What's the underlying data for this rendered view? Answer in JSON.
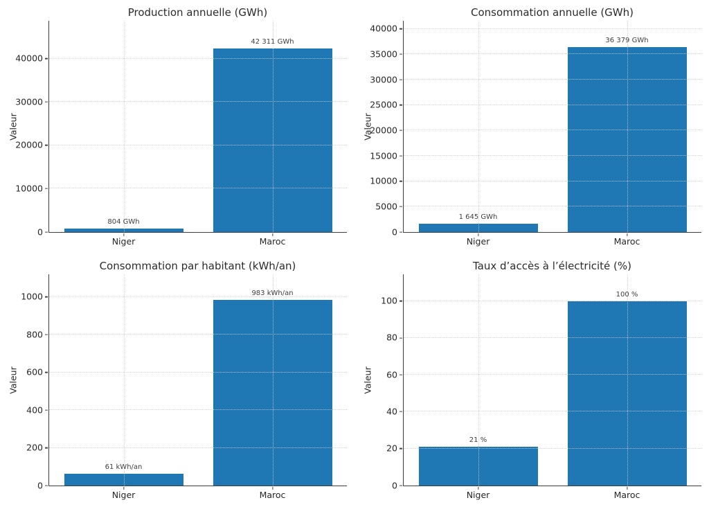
{
  "figure": {
    "background": "#ffffff",
    "layout": "2x2-grid"
  },
  "colors": {
    "bar": "#1f77b4",
    "grid": "#cacaca",
    "spine": "#3c3c3c",
    "tick_text": "#262626",
    "annotation_text": "#3d3d3d"
  },
  "chart_data": [
    {
      "type": "bar",
      "title": "Production annuelle (GWh)",
      "xlabel": "",
      "ylabel": "Valeur",
      "categories": [
        "Niger",
        "Maroc"
      ],
      "values": [
        804,
        42311
      ],
      "value_labels": [
        "804 GWh",
        "42 311 GWh"
      ],
      "yticks": [
        0,
        10000,
        20000,
        30000,
        40000
      ],
      "ytick_labels": [
        "0",
        "10000",
        "20000",
        "30000",
        "40000"
      ],
      "ylim": [
        0,
        48700
      ],
      "grid": "dotted",
      "legend": null
    },
    {
      "type": "bar",
      "title": "Consommation annuelle (GWh)",
      "xlabel": "",
      "ylabel": "Valeur",
      "categories": [
        "Niger",
        "Maroc"
      ],
      "values": [
        1645,
        36379
      ],
      "value_labels": [
        "1 645 GWh",
        "36 379 GWh"
      ],
      "yticks": [
        0,
        5000,
        10000,
        15000,
        20000,
        25000,
        30000,
        35000,
        40000
      ],
      "ytick_labels": [
        "0",
        "5000",
        "10000",
        "15000",
        "20000",
        "25000",
        "30000",
        "35000",
        "40000"
      ],
      "ylim": [
        0,
        41600
      ],
      "grid": "dotted",
      "legend": null
    },
    {
      "type": "bar",
      "title": "Consommation par habitant (kWh/an)",
      "xlabel": "",
      "ylabel": "Valeur",
      "categories": [
        "Niger",
        "Maroc"
      ],
      "values": [
        61,
        983
      ],
      "value_labels": [
        "61 kWh/an",
        "983 kWh/an"
      ],
      "yticks": [
        0,
        200,
        400,
        600,
        800,
        1000
      ],
      "ytick_labels": [
        "0",
        "200",
        "400",
        "600",
        "800",
        "1000"
      ],
      "ylim": [
        0,
        1120
      ],
      "grid": "dotted",
      "legend": null
    },
    {
      "type": "bar",
      "title": "Taux d’accès à l’électricité (%)",
      "xlabel": "",
      "ylabel": "Valeur",
      "categories": [
        "Niger",
        "Maroc"
      ],
      "values": [
        21,
        100
      ],
      "value_labels": [
        "21 %",
        "100 %"
      ],
      "yticks": [
        0,
        20,
        40,
        60,
        80,
        100
      ],
      "ytick_labels": [
        "0",
        "20",
        "40",
        "60",
        "80",
        "100"
      ],
      "ylim": [
        0,
        114.5
      ],
      "grid": "dotted",
      "legend": null
    }
  ]
}
